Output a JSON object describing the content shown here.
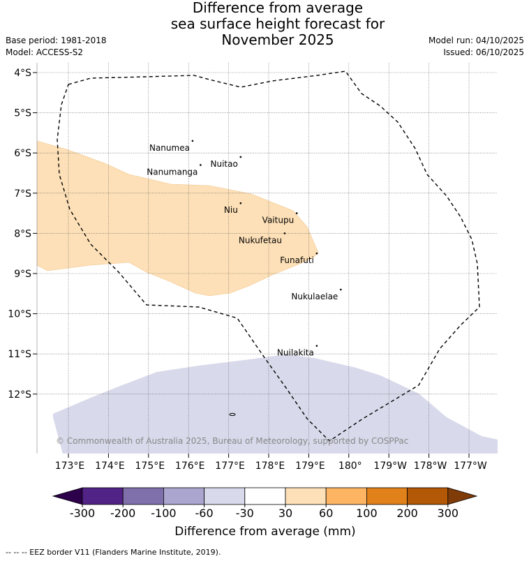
{
  "title_lines": [
    "Difference from average",
    "sea surface height forecast for",
    "November 2025"
  ],
  "meta": {
    "base_period": "Base period: 1981-2018",
    "model": "Model: ACCESS-S2",
    "model_run": "Model run: 04/10/2025",
    "issued": "Issued: 06/10/2025"
  },
  "map": {
    "lat_labels": [
      "4°S",
      "5°S",
      "6°S",
      "7°S",
      "8°S",
      "9°S",
      "10°S",
      "11°S",
      "12°S"
    ],
    "lon_labels": [
      "173°E",
      "174°E",
      "175°E",
      "176°E",
      "177°E",
      "178°E",
      "179°E",
      "180°",
      "179°W",
      "178°W",
      "177°W"
    ],
    "islands": [
      {
        "name": "Nanumea",
        "lon": 176.1,
        "lat": -5.7
      },
      {
        "name": "Nuitao",
        "lon": 177.3,
        "lat": -6.1
      },
      {
        "name": "Nanumanga",
        "lon": 176.3,
        "lat": -6.3
      },
      {
        "name": "Niu",
        "lon": 177.3,
        "lat": -7.25
      },
      {
        "name": "Vaitupu",
        "lon": 178.7,
        "lat": -7.5
      },
      {
        "name": "Nukufetau",
        "lon": 178.4,
        "lat": -8.0
      },
      {
        "name": "Funafuti",
        "lon": 179.2,
        "lat": -8.5
      },
      {
        "name": "Nukulaelae",
        "lon": 179.8,
        "lat": -9.4
      },
      {
        "name": "Nuilakita",
        "lon": 179.2,
        "lat": -10.8
      }
    ],
    "anomaly_regions": [
      {
        "category": "30 to 60",
        "color": "#fde0b7"
      },
      {
        "category": "-30 to -60",
        "color": "#d8d9ea"
      }
    ],
    "copyright": "© Commonwealth of Australia 2025, Bureau of Meteorology, supported by COSPPac"
  },
  "colorbar": {
    "label": "Difference from average (mm)",
    "ticks": [
      "-300",
      "-200",
      "-100",
      "-60",
      "-30",
      "30",
      "60",
      "100",
      "200",
      "300"
    ],
    "colors": [
      "#522386",
      "#7f6fab",
      "#aaa6cf",
      "#d8d9ea",
      "#ffffff",
      "#fde0b7",
      "#fdb563",
      "#e1811a",
      "#b35806"
    ],
    "under_color": "#2d004b",
    "over_color": "#7f3b08"
  },
  "footnote": "--  --  -- EEZ border V11 (Flanders Marine Institute, 2019)."
}
